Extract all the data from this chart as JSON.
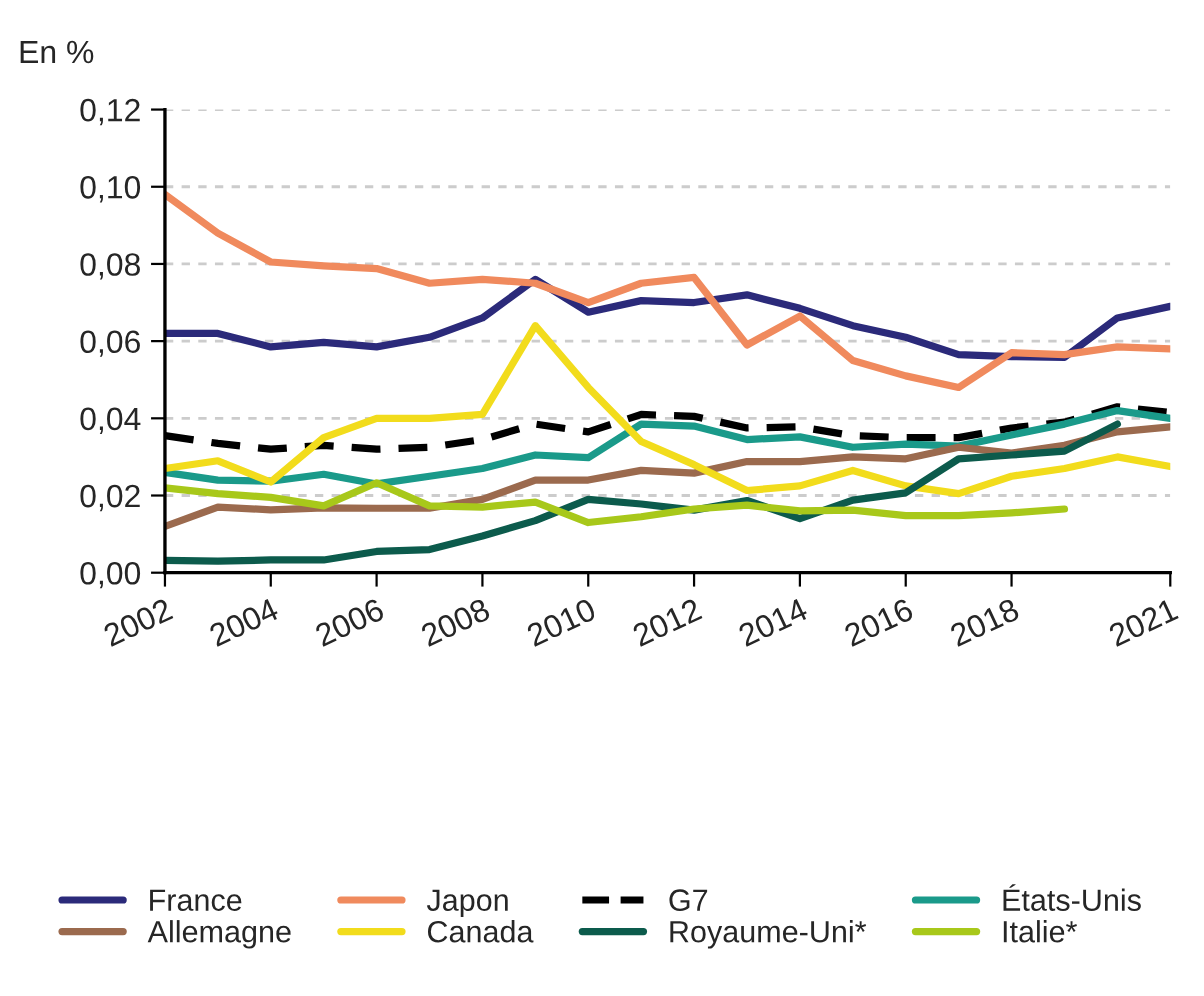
{
  "chart_data": {
    "type": "line",
    "ylabel": "En %",
    "x": [
      2002,
      2003,
      2004,
      2005,
      2006,
      2007,
      2008,
      2009,
      2010,
      2011,
      2012,
      2013,
      2014,
      2015,
      2016,
      2017,
      2018,
      2019,
      2020,
      2021
    ],
    "xlim": [
      2002,
      2021
    ],
    "xticks": [
      2002,
      2004,
      2006,
      2008,
      2010,
      2012,
      2014,
      2016,
      2018,
      2021
    ],
    "ylim": [
      0,
      0.12
    ],
    "yticks": [
      {
        "value": 0,
        "label": "0,00"
      },
      {
        "value": 0.02,
        "label": "0,02"
      },
      {
        "value": 0.04,
        "label": "0,04"
      },
      {
        "value": 0.06,
        "label": "0,06"
      },
      {
        "value": 0.08,
        "label": "0,08"
      },
      {
        "value": 0.1,
        "label": "0,10"
      },
      {
        "value": 0.12,
        "label": "0,12"
      }
    ],
    "grid": "y",
    "legend": "bottom",
    "marker": "none",
    "series": [
      {
        "name": "France",
        "color": "#2b2a7a",
        "values": [
          0.062,
          0.062,
          0.0585,
          0.0597,
          0.0585,
          0.061,
          0.066,
          0.076,
          0.0675,
          0.0705,
          0.07,
          0.072,
          0.0685,
          0.064,
          0.061,
          0.0565,
          0.056,
          0.0558,
          0.066,
          0.069
        ]
      },
      {
        "name": "Japon",
        "color": "#f08a5d",
        "values": [
          0.098,
          0.088,
          0.0805,
          0.0795,
          0.0788,
          0.075,
          0.076,
          0.075,
          0.07,
          0.075,
          0.0765,
          0.059,
          0.0665,
          0.055,
          0.051,
          0.048,
          0.057,
          0.0565,
          0.0585,
          0.058
        ]
      },
      {
        "name": "G7",
        "color": "#000000",
        "line_style": "dashed",
        "values": [
          0.0355,
          0.0335,
          0.032,
          0.033,
          0.032,
          0.0325,
          0.0345,
          0.0385,
          0.0365,
          0.041,
          0.0405,
          0.0375,
          0.0378,
          0.0355,
          0.035,
          0.035,
          0.0375,
          0.039,
          0.043,
          0.0415
        ]
      },
      {
        "name": "États-Unis",
        "color": "#1a9a8a",
        "values": [
          0.026,
          0.024,
          0.0237,
          0.0255,
          0.023,
          0.025,
          0.027,
          0.0305,
          0.0298,
          0.0385,
          0.038,
          0.0345,
          0.0352,
          0.0325,
          0.0333,
          0.0328,
          0.0357,
          0.0385,
          0.042,
          0.04
        ]
      },
      {
        "name": "Allemagne",
        "color": "#9b6a4e",
        "values": [
          0.012,
          0.017,
          0.0163,
          0.0168,
          0.0167,
          0.0167,
          0.019,
          0.024,
          0.024,
          0.0265,
          0.0258,
          0.0288,
          0.0288,
          0.03,
          0.0295,
          0.0325,
          0.031,
          0.033,
          0.0365,
          0.0378
        ]
      },
      {
        "name": "Canada",
        "color": "#f2dc1c",
        "values": [
          0.027,
          0.029,
          0.0235,
          0.035,
          0.04,
          0.04,
          0.041,
          0.064,
          0.048,
          0.034,
          0.028,
          0.0213,
          0.0225,
          0.0265,
          0.0225,
          0.0205,
          0.025,
          0.027,
          0.03,
          0.0275
        ]
      },
      {
        "name": "Royaume-Uni*",
        "color": "#0c5b4c",
        "values": [
          0.0032,
          0.003,
          0.0033,
          0.0033,
          0.0055,
          0.006,
          0.0095,
          0.0135,
          0.019,
          0.0178,
          0.0162,
          0.0187,
          0.014,
          0.0188,
          0.0207,
          0.0295,
          0.0305,
          0.0315,
          0.0385,
          null
        ]
      },
      {
        "name": "Italie*",
        "color": "#a8c81a",
        "values": [
          0.022,
          0.0205,
          0.0195,
          0.0173,
          0.0233,
          0.0173,
          0.017,
          0.0183,
          0.013,
          0.0145,
          0.0165,
          0.0175,
          0.016,
          0.0162,
          0.0148,
          0.0148,
          0.0155,
          0.0165,
          null,
          null
        ]
      }
    ]
  }
}
